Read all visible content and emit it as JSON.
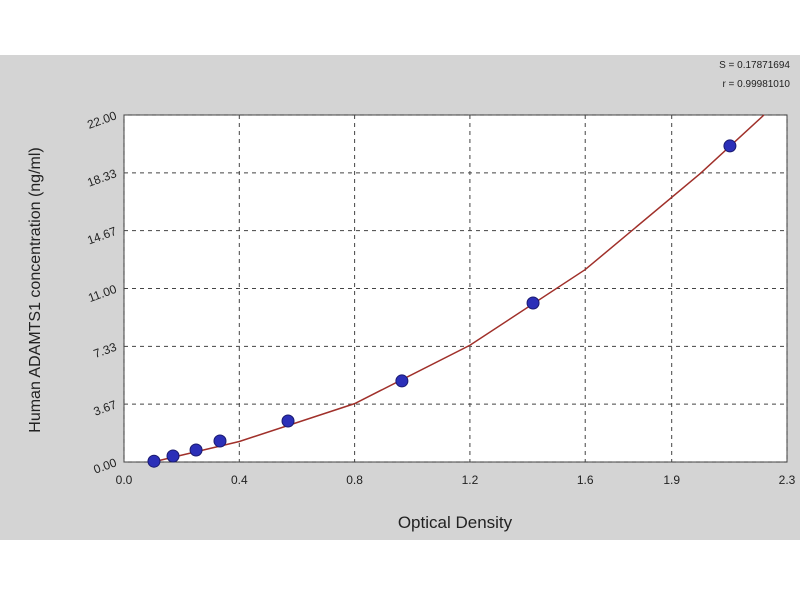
{
  "chart_data": {
    "type": "scatter",
    "annotations": [
      "S = 0.17871694",
      "r = 0.99981010"
    ],
    "x_label": "Optical Density",
    "y_label": "Human ADAMTS1 concentration (ng/ml)",
    "series": [
      {
        "type": "scatter",
        "color": "#2b2fb8",
        "x": [
          0.104,
          0.17,
          0.25,
          0.333,
          0.569,
          0.964,
          1.419,
          2.102
        ],
        "values": [
          0.05,
          0.38,
          0.76,
          1.33,
          2.6,
          5.14,
          10.08,
          20.04
        ]
      },
      {
        "type": "line",
        "color": "#a0302a",
        "x": [
          0.1,
          0.4,
          0.8,
          1.2,
          1.6,
          2.0,
          2.22
        ],
        "values": [
          0.0,
          1.3,
          3.7,
          7.4,
          12.2,
          18.3,
          22.0
        ]
      }
    ],
    "xlim": [
      0,
      2.3
    ],
    "xticks": [
      {
        "value": 0,
        "label": "0.0"
      },
      0.4,
      0.8,
      1.2,
      1.6,
      1.9,
      2.3
    ],
    "ylim": [
      0,
      22
    ],
    "yticks": [
      {
        "value": 0,
        "label": "0.00"
      },
      3.67,
      7.33,
      {
        "value": 11,
        "label": "11.00"
      },
      14.67,
      18.33,
      {
        "value": 22,
        "label": "22.00"
      }
    ],
    "grid": true
  }
}
